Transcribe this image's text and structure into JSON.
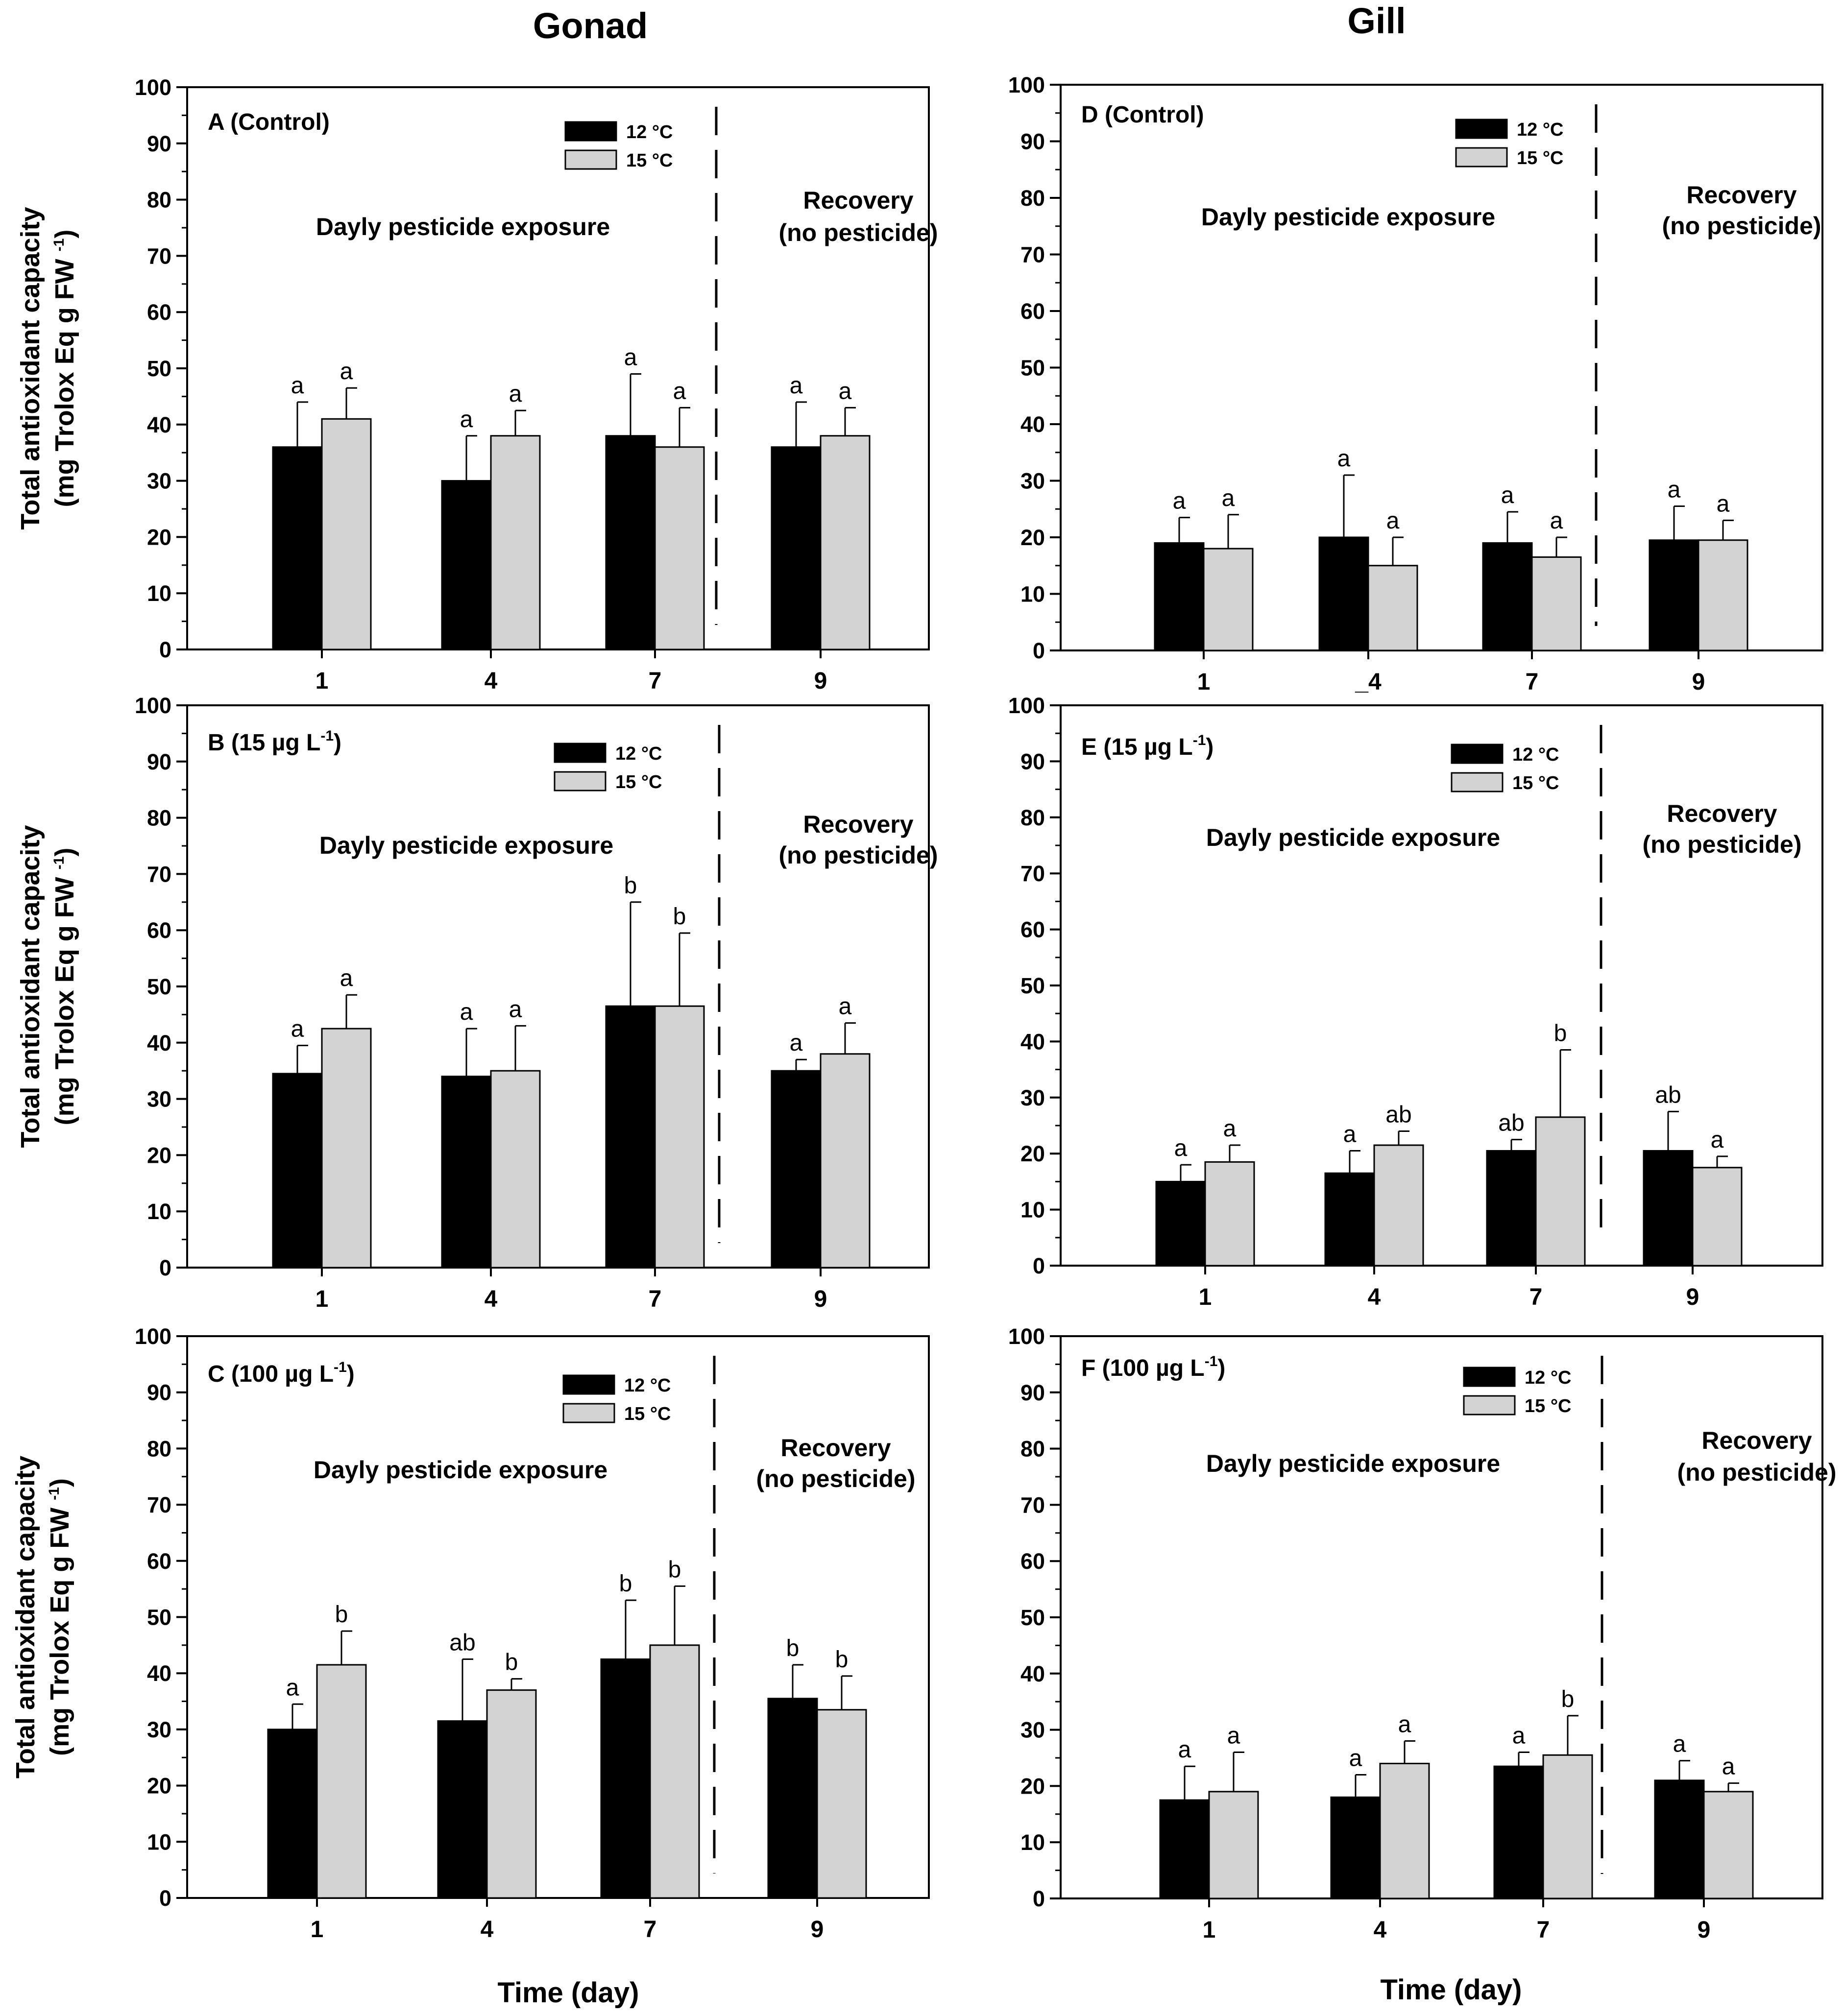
{
  "figure": {
    "column_titles": [
      "Gonad",
      "Gill"
    ],
    "x_axis_title": "Time (day)",
    "y_axis_title_line1": "Total antioxidant capacity",
    "y_axis_title_line2_prefix": "(mg Trolox Eq g FW",
    "y_axis_title_sup": "-1",
    "y_axis_title_line2_suffix": ")"
  },
  "colors": {
    "series_12C": "#000000",
    "series_15C": "#d3d3d3",
    "axis": "#000000",
    "background": "#ffffff"
  },
  "chart_data": [
    {
      "panel": "A",
      "tissue": "Gonad",
      "type": "bar",
      "title": "A (Control)",
      "title_sup": "",
      "title_suffix": "",
      "categories": [
        "1",
        "4",
        "7",
        "9"
      ],
      "ylim": [
        0,
        100
      ],
      "yticks": [
        "0",
        "10",
        "20",
        "30",
        "40",
        "50",
        "60",
        "70",
        "80",
        "90",
        "100"
      ],
      "series": [
        {
          "name": "12 °C",
          "values": [
            36,
            30,
            38,
            36
          ],
          "errors": [
            8,
            8,
            11,
            8
          ],
          "letters": [
            "a",
            "a",
            "a",
            "a"
          ]
        },
        {
          "name": "15 °C",
          "values": [
            41,
            38,
            36,
            38
          ],
          "errors": [
            5.5,
            4.5,
            7,
            5
          ],
          "letters": [
            "a",
            "a",
            "a",
            "a"
          ]
        }
      ],
      "region_left": "Dayly pesticide exposure",
      "region_right_line1": "Recovery",
      "region_right_line2": "(no pesticide)"
    },
    {
      "panel": "B",
      "tissue": "Gonad",
      "type": "bar",
      "title": "B (15 µg L",
      "title_sup": "-1",
      "title_suffix": ")",
      "categories": [
        "1",
        "4",
        "7",
        "9"
      ],
      "ylim": [
        0,
        100
      ],
      "yticks": [
        "0",
        "10",
        "20",
        "30",
        "40",
        "50",
        "60",
        "70",
        "80",
        "90",
        "100"
      ],
      "series": [
        {
          "name": "12 °C",
          "values": [
            34.5,
            34,
            46.5,
            35
          ],
          "errors": [
            5,
            8.5,
            18.5,
            2
          ],
          "letters": [
            "a",
            "a",
            "b",
            "a"
          ]
        },
        {
          "name": "15 °C",
          "values": [
            42.5,
            35,
            46.5,
            38
          ],
          "errors": [
            6,
            8,
            13,
            5.5
          ],
          "letters": [
            "a",
            "a",
            "b",
            "a"
          ]
        }
      ],
      "region_left": "Dayly pesticide exposure",
      "region_right_line1": "Recovery",
      "region_right_line2": "(no pesticide)"
    },
    {
      "panel": "C",
      "tissue": "Gonad",
      "type": "bar",
      "title": "C (100 µg L",
      "title_sup": "-1",
      "title_suffix": ")",
      "categories": [
        "1",
        "4",
        "7",
        "9"
      ],
      "ylim": [
        0,
        100
      ],
      "yticks": [
        "0",
        "10",
        "20",
        "30",
        "40",
        "50",
        "60",
        "70",
        "80",
        "90",
        "100"
      ],
      "series": [
        {
          "name": "12 °C",
          "values": [
            30,
            31.5,
            42.5,
            35.5
          ],
          "errors": [
            4.5,
            11,
            10.5,
            6
          ],
          "letters": [
            "a",
            "ab",
            "b",
            "b"
          ]
        },
        {
          "name": "15 °C",
          "values": [
            41.5,
            37,
            45,
            33.5
          ],
          "errors": [
            6,
            2,
            10.5,
            6
          ],
          "letters": [
            "b",
            "b",
            "b",
            "b"
          ]
        }
      ],
      "region_left": "Dayly pesticide exposure",
      "region_right_line1": "Recovery",
      "region_right_line2": "(no pesticide)"
    },
    {
      "panel": "D",
      "tissue": "Gill",
      "type": "bar",
      "title": "D (Control)",
      "title_sup": "",
      "title_suffix": "",
      "categories": [
        "1",
        "_4",
        "7",
        "9"
      ],
      "ylim": [
        0,
        100
      ],
      "yticks": [
        "0",
        "10",
        "20",
        "30",
        "40",
        "50",
        "60",
        "70",
        "80",
        "90",
        "100"
      ],
      "series": [
        {
          "name": "12 °C",
          "values": [
            19,
            20,
            19,
            19.5
          ],
          "errors": [
            4.5,
            11,
            5.5,
            6
          ],
          "letters": [
            "a",
            "a",
            "a",
            "a"
          ]
        },
        {
          "name": "15 °C",
          "values": [
            18,
            15,
            16.5,
            19.5
          ],
          "errors": [
            6,
            5,
            3.5,
            3.5
          ],
          "letters": [
            "a",
            "a",
            "a",
            "a"
          ]
        }
      ],
      "region_left": "Dayly pesticide exposure",
      "region_right_line1": "Recovery",
      "region_right_line2": "(no pesticide)"
    },
    {
      "panel": "E",
      "tissue": "Gill",
      "type": "bar",
      "title": "E (15 µg L",
      "title_sup": "-1",
      "title_suffix": ")",
      "categories": [
        "1",
        "4",
        "7",
        "9"
      ],
      "ylim": [
        0,
        100
      ],
      "yticks": [
        "0",
        "10",
        "20",
        "30",
        "40",
        "50",
        "60",
        "70",
        "80",
        "90",
        "100"
      ],
      "series": [
        {
          "name": "12 °C",
          "values": [
            15,
            16.5,
            20.5,
            20.5
          ],
          "errors": [
            3,
            4,
            2,
            7
          ],
          "letters": [
            "a",
            "a",
            "ab",
            "ab"
          ]
        },
        {
          "name": "15 °C",
          "values": [
            18.5,
            21.5,
            26.5,
            17.5
          ],
          "errors": [
            3,
            2.5,
            12,
            2
          ],
          "letters": [
            "a",
            "ab",
            "b",
            "a"
          ]
        }
      ],
      "region_left": "Dayly pesticide exposure",
      "region_right_line1": "Recovery",
      "region_right_line2": "(no pesticide)"
    },
    {
      "panel": "F",
      "tissue": "Gill",
      "type": "bar",
      "title": "F (100 µg L",
      "title_sup": "-1",
      "title_suffix": ")",
      "categories": [
        "1",
        "4",
        "7",
        "9"
      ],
      "ylim": [
        0,
        100
      ],
      "yticks": [
        "0",
        "10",
        "20",
        "30",
        "40",
        "50",
        "60",
        "70",
        "80",
        "90",
        "100"
      ],
      "series": [
        {
          "name": "12 °C",
          "values": [
            17.5,
            18,
            23.5,
            21
          ],
          "errors": [
            6,
            4,
            2.5,
            3.5
          ],
          "letters": [
            "a",
            "a",
            "a",
            "a"
          ]
        },
        {
          "name": "15 °C",
          "values": [
            19,
            24,
            25.5,
            19
          ],
          "errors": [
            7,
            4,
            7,
            1.5
          ],
          "letters": [
            "a",
            "a",
            "b",
            "a"
          ]
        }
      ],
      "region_left": "Dayly pesticide exposure",
      "region_right_line1": "Recovery",
      "region_right_line2": "(no pesticide)"
    }
  ]
}
